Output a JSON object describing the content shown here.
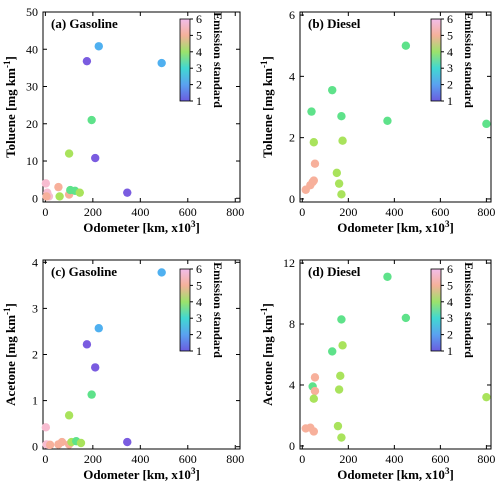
{
  "chart_data": [
    {
      "type": "scatter",
      "title": "(a)  Gasoline",
      "xlabel_main": "Odometer [km, x10",
      "xlabel_sup": "3",
      "xlabel_end": "]",
      "ylabel_main": "Toluene [mg km",
      "ylabel_sup": "-1",
      "ylabel_end": "]",
      "xlim": [
        -10,
        820
      ],
      "ylim": [
        -1,
        50
      ],
      "xticks": [
        0,
        200,
        400,
        600,
        800
      ],
      "yticks": [
        0,
        10,
        20,
        30,
        40,
        50
      ],
      "colorbar": {
        "label": "Emission standard",
        "range": [
          1,
          6
        ],
        "ticks": [
          1,
          2,
          3,
          4,
          5,
          6
        ]
      },
      "points": [
        {
          "x": 2,
          "y": 4.0,
          "std": 6
        },
        {
          "x": 8,
          "y": 1.5,
          "std": 6
        },
        {
          "x": 15,
          "y": 0.5,
          "std": 6
        },
        {
          "x": 5,
          "y": 0.5,
          "std": 5
        },
        {
          "x": 55,
          "y": 3.0,
          "std": 5
        },
        {
          "x": 60,
          "y": 0.5,
          "std": 4
        },
        {
          "x": 100,
          "y": 1.0,
          "std": 5
        },
        {
          "x": 100,
          "y": 12.0,
          "std": 4
        },
        {
          "x": 105,
          "y": 2.2,
          "std": 3
        },
        {
          "x": 125,
          "y": 2.0,
          "std": 3
        },
        {
          "x": 145,
          "y": 1.5,
          "std": 4
        },
        {
          "x": 175,
          "y": 36.8,
          "std": 1
        },
        {
          "x": 195,
          "y": 21.0,
          "std": 3
        },
        {
          "x": 210,
          "y": 10.8,
          "std": 1
        },
        {
          "x": 225,
          "y": 40.8,
          "std": 2
        },
        {
          "x": 345,
          "y": 1.5,
          "std": 1
        },
        {
          "x": 490,
          "y": 36.3,
          "std": 2
        }
      ]
    },
    {
      "type": "scatter",
      "title": "(b)  Diesel",
      "xlabel_main": "Odometer [km, x10",
      "xlabel_sup": "3",
      "xlabel_end": "]",
      "ylabel_main": "Toluene [mg km",
      "ylabel_sup": "-1",
      "ylabel_end": "]",
      "xlim": [
        -10,
        820
      ],
      "ylim": [
        -0.1,
        6.1
      ],
      "xticks": [
        0,
        200,
        400,
        600,
        800
      ],
      "yticks": [
        0,
        2,
        4,
        6
      ],
      "colorbar": {
        "label": "Emission standard",
        "range": [
          1,
          6
        ],
        "ticks": [
          1,
          2,
          3,
          4,
          5,
          6
        ]
      },
      "points": [
        {
          "x": 15,
          "y": 0.3,
          "std": 5
        },
        {
          "x": 35,
          "y": 0.45,
          "std": 5
        },
        {
          "x": 45,
          "y": 0.55,
          "std": 5
        },
        {
          "x": 50,
          "y": 0.6,
          "std": 5
        },
        {
          "x": 55,
          "y": 1.15,
          "std": 5
        },
        {
          "x": 40,
          "y": 2.85,
          "std": 3
        },
        {
          "x": 50,
          "y": 1.85,
          "std": 4
        },
        {
          "x": 130,
          "y": 3.55,
          "std": 3
        },
        {
          "x": 150,
          "y": 0.85,
          "std": 4
        },
        {
          "x": 160,
          "y": 0.5,
          "std": 4
        },
        {
          "x": 170,
          "y": 0.15,
          "std": 4
        },
        {
          "x": 170,
          "y": 2.7,
          "std": 3
        },
        {
          "x": 175,
          "y": 1.9,
          "std": 4
        },
        {
          "x": 370,
          "y": 2.55,
          "std": 3
        },
        {
          "x": 450,
          "y": 5.0,
          "std": 3
        },
        {
          "x": 800,
          "y": 2.45,
          "std": 3
        }
      ]
    },
    {
      "type": "scatter",
      "title": "(c)  Gasoline",
      "xlabel_main": "Odometer [km, x10",
      "xlabel_sup": "3",
      "xlabel_end": "]",
      "ylabel_main": "Acetone [mg km",
      "ylabel_sup": "-1",
      "ylabel_end": "]",
      "xlim": [
        -10,
        820
      ],
      "ylim": [
        -0.05,
        4.05
      ],
      "xticks": [
        0,
        200,
        400,
        600,
        800
      ],
      "yticks": [
        0,
        1,
        2,
        3,
        4
      ],
      "colorbar": {
        "label": "Emission standard",
        "range": [
          1,
          6
        ],
        "ticks": [
          1,
          2,
          3,
          4,
          5,
          6
        ]
      },
      "points": [
        {
          "x": 2,
          "y": 0.42,
          "std": 6
        },
        {
          "x": 5,
          "y": 0.05,
          "std": 6
        },
        {
          "x": 15,
          "y": 0.04,
          "std": 6
        },
        {
          "x": 20,
          "y": 0.04,
          "std": 5
        },
        {
          "x": 55,
          "y": 0.05,
          "std": 5
        },
        {
          "x": 70,
          "y": 0.1,
          "std": 5
        },
        {
          "x": 100,
          "y": 0.68,
          "std": 4
        },
        {
          "x": 100,
          "y": 0.05,
          "std": 5
        },
        {
          "x": 110,
          "y": 0.1,
          "std": 4
        },
        {
          "x": 130,
          "y": 0.12,
          "std": 3
        },
        {
          "x": 150,
          "y": 0.08,
          "std": 4
        },
        {
          "x": 175,
          "y": 2.22,
          "std": 1
        },
        {
          "x": 195,
          "y": 1.13,
          "std": 3
        },
        {
          "x": 210,
          "y": 1.72,
          "std": 1
        },
        {
          "x": 225,
          "y": 2.57,
          "std": 2
        },
        {
          "x": 345,
          "y": 0.1,
          "std": 1
        },
        {
          "x": 490,
          "y": 3.78,
          "std": 2
        }
      ]
    },
    {
      "type": "scatter",
      "title": "(d)  Diesel",
      "xlabel_main": "Odometer [km, x10",
      "xlabel_sup": "3",
      "xlabel_end": "]",
      "ylabel_main": "Acetone [mg km",
      "ylabel_sup": "-1",
      "ylabel_end": "]",
      "xlim": [
        -10,
        820
      ],
      "ylim": [
        -0.2,
        12.2
      ],
      "xticks": [
        0,
        200,
        400,
        600,
        800
      ],
      "yticks": [
        0,
        4,
        8,
        12
      ],
      "colorbar": {
        "label": "Emission standard",
        "range": [
          1,
          6
        ],
        "ticks": [
          1,
          2,
          3,
          4,
          5,
          6
        ]
      },
      "points": [
        {
          "x": 15,
          "y": 1.15,
          "std": 5
        },
        {
          "x": 35,
          "y": 1.2,
          "std": 5
        },
        {
          "x": 50,
          "y": 0.95,
          "std": 5
        },
        {
          "x": 45,
          "y": 3.9,
          "std": 3
        },
        {
          "x": 55,
          "y": 3.6,
          "std": 5
        },
        {
          "x": 55,
          "y": 4.5,
          "std": 5
        },
        {
          "x": 50,
          "y": 3.1,
          "std": 4
        },
        {
          "x": 130,
          "y": 6.2,
          "std": 3
        },
        {
          "x": 155,
          "y": 1.3,
          "std": 4
        },
        {
          "x": 160,
          "y": 3.7,
          "std": 4
        },
        {
          "x": 165,
          "y": 4.6,
          "std": 4
        },
        {
          "x": 170,
          "y": 0.55,
          "std": 4
        },
        {
          "x": 170,
          "y": 8.3,
          "std": 3
        },
        {
          "x": 175,
          "y": 6.6,
          "std": 4
        },
        {
          "x": 370,
          "y": 11.1,
          "std": 3
        },
        {
          "x": 450,
          "y": 8.4,
          "std": 3
        },
        {
          "x": 800,
          "y": 3.2,
          "std": 4
        }
      ]
    }
  ]
}
